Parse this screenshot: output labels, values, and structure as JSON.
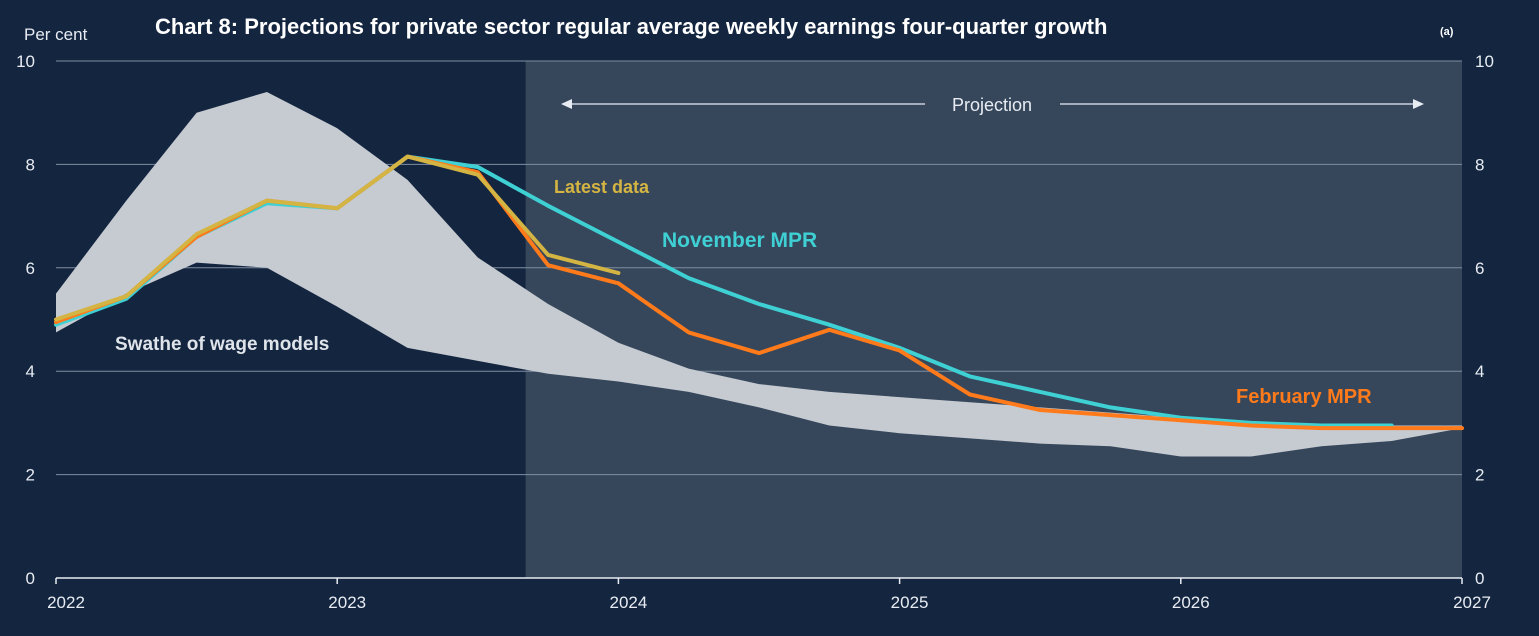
{
  "chart_data": {
    "type": "line",
    "title": "Chart 8: Projections for private sector regular average weekly earnings four-quarter growth",
    "title_note": "(a)",
    "ylabel": "Per cent",
    "ylim": [
      0,
      10
    ],
    "yticks": [
      "0",
      "2",
      "4",
      "6",
      "8",
      "10"
    ],
    "xlim": [
      2022,
      2027
    ],
    "xticks": [
      "2022",
      "2023",
      "2024",
      "2025",
      "2026",
      "2027"
    ],
    "grid": true,
    "projection": {
      "label": "Projection",
      "start": 2023.67
    },
    "band": {
      "name": "Swathe of wage models",
      "color": "#c6cad1",
      "x": [
        2022.0,
        2022.25,
        2022.5,
        2022.75,
        2023.0,
        2023.25,
        2023.5,
        2023.75,
        2024.0,
        2024.25,
        2024.5,
        2024.75,
        2025.0,
        2025.25,
        2025.5,
        2025.75,
        2026.0,
        2026.25,
        2026.5,
        2026.75,
        2027.0
      ],
      "upper": [
        5.5,
        7.3,
        9.0,
        9.4,
        8.7,
        7.7,
        6.2,
        5.3,
        4.55,
        4.05,
        3.75,
        3.6,
        3.5,
        3.4,
        3.3,
        3.2,
        3.1,
        3.0,
        2.95,
        2.95,
        2.95
      ],
      "lower": [
        4.75,
        5.5,
        6.1,
        6.0,
        5.25,
        4.45,
        4.2,
        3.95,
        3.8,
        3.6,
        3.3,
        2.95,
        2.8,
        2.7,
        2.6,
        2.55,
        2.35,
        2.35,
        2.55,
        2.65,
        2.9
      ]
    },
    "series": [
      {
        "name": "Latest data",
        "color": "#d4b442",
        "x": [
          2022.0,
          2022.25,
          2022.5,
          2022.75,
          2023.0,
          2023.25,
          2023.5,
          2023.75,
          2024.0
        ],
        "values": [
          5.0,
          5.45,
          6.65,
          7.3,
          7.15,
          8.15,
          7.8,
          6.25,
          5.9
        ]
      },
      {
        "name": "November MPR",
        "color": "#3fd0d4",
        "x": [
          2022.0,
          2022.25,
          2022.5,
          2022.75,
          2023.0,
          2023.25,
          2023.5,
          2023.75,
          2024.0,
          2024.25,
          2024.5,
          2024.75,
          2025.0,
          2025.25,
          2025.5,
          2025.75,
          2026.0,
          2026.25,
          2026.5,
          2026.75
        ],
        "values": [
          4.9,
          5.4,
          6.6,
          7.25,
          7.15,
          8.15,
          7.95,
          7.2,
          6.5,
          5.8,
          5.3,
          4.9,
          4.45,
          3.9,
          3.6,
          3.3,
          3.1,
          3.0,
          2.95,
          2.95
        ]
      },
      {
        "name": "February MPR",
        "color": "#ff7a1a",
        "x": [
          2022.0,
          2022.25,
          2022.5,
          2022.75,
          2023.0,
          2023.25,
          2023.5,
          2023.75,
          2024.0,
          2024.25,
          2024.5,
          2024.75,
          2025.0,
          2025.25,
          2025.5,
          2025.75,
          2026.0,
          2026.25,
          2026.5,
          2026.75,
          2027.0
        ],
        "values": [
          4.95,
          5.45,
          6.6,
          7.3,
          7.15,
          8.15,
          7.85,
          6.05,
          5.7,
          4.75,
          4.35,
          4.8,
          4.4,
          3.55,
          3.25,
          3.15,
          3.05,
          2.95,
          2.9,
          2.9,
          2.9
        ]
      }
    ]
  }
}
